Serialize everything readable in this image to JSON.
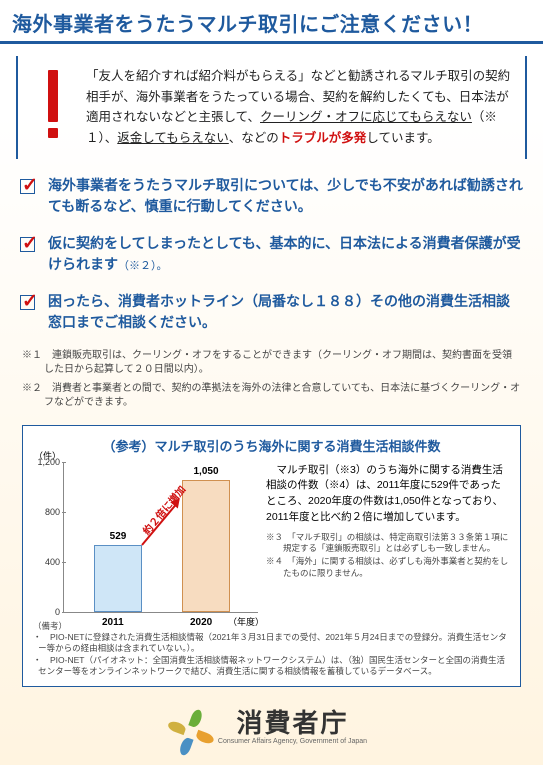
{
  "title": "海外事業者をうたうマルチ取引にご注意ください！",
  "warning": {
    "line1": "「友人を紹介すれば紹介料がもらえる」などと勧誘されるマルチ取引の契約相手が、海外事業者をうたっている場合、契約を解約したくても、日本法が適用されないなどと主張して、",
    "u1": "クーリング・オフに応じてもらえない",
    "note1": "（※１）、",
    "u2": "返金してもらえない",
    "line2": "、などの",
    "red": "トラブルが多発",
    "line3": "しています。"
  },
  "checks": [
    {
      "text": "海外事業者をうたうマルチ取引については、少しでも不安があれば勧誘されても断るなど、慎重に行動してください。",
      "small": ""
    },
    {
      "text": "仮に契約をしてしまったとしても、基本的に、日本法による消費者保護が受けられます",
      "small": "（※２）。"
    },
    {
      "text": "困ったら、消費者ホットライン（局番なし１８８）その他の消費生活相談窓口までご相談ください。",
      "small": ""
    }
  ],
  "footnotes": [
    "※１　連鎖販売取引は、クーリング・オフをすることができます（クーリング・オフ期間は、契約書面を受領した日から起算して２０日間以内）。",
    "※２　消費者と事業者との間で、契約の準拠法を海外の法律と合意していても、日本法に基づくクーリング・オフなどができます。"
  ],
  "chart": {
    "title": "（参考）マルチ取引のうち海外に関する消費生活相談件数",
    "yUnit": "（件）",
    "xUnit": "（年度）",
    "arrowLabel": "約２倍に増加",
    "ylim": [
      0,
      1200
    ],
    "yticks": [
      0,
      400,
      800,
      1200
    ],
    "bars": [
      {
        "year": "2011",
        "value": 529,
        "colors": {
          "fill": "#cfe6f7",
          "border": "#5a8fc4"
        }
      },
      {
        "year": "2020",
        "value": 1050,
        "colors": {
          "fill": "#f7dcc0",
          "border": "#d09050"
        }
      }
    ],
    "explain": "　マルチ取引（※3）のうち海外に関する消費生活相談の件数（※4）は、2011年度に529件であったところ、2020年度の件数は1,050件となっており、2011年度と比べ約２倍に増加しています。",
    "notes": [
      "※３　「マルチ取引」の相談は、特定商取引法第３３条第１項に規定する「連鎖販売取引」とは必ずしも一致しません。",
      "※４　「海外」に関する相談は、必ずしも海外事業者と契約をしたものに限りません。"
    ],
    "biko_label": "（備考）",
    "biko": [
      "・　PIO-NETに登録された消費生活相談情報（2021年３月31日までの受付、2021年５月24日までの登録分。消費生活センター等からの経由相談は含まれていない。）。",
      "・　PIO-NET（パイオネット：全国消費生活相談情報ネットワークシステム）は、（独）国民生活センターと全国の消費生活センター等をオンラインネットワークで結び、消費生活に関する相談情報を蓄積しているデータベース。"
    ]
  },
  "logo": {
    "text": "消費者庁",
    "sub": "Consumer Affairs Agency, Government of Japan"
  }
}
